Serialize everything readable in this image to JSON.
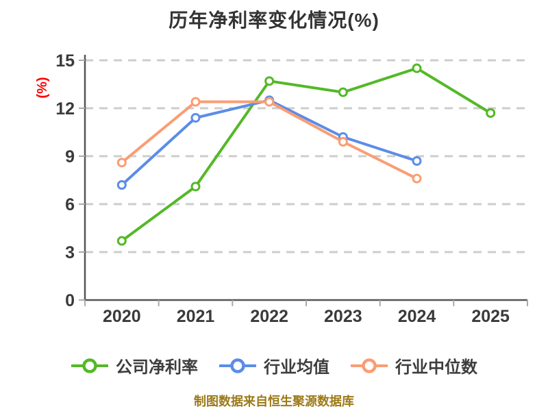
{
  "chart_data": {
    "type": "line",
    "title": "历年净利率变化情况(%)",
    "ylabel": "(%)",
    "xlabel": "",
    "categories": [
      "2020",
      "2021",
      "2022",
      "2023",
      "2024",
      "2025"
    ],
    "series": [
      {
        "name": "公司净利率",
        "color": "#54b827",
        "values": [
          3.7,
          7.1,
          13.7,
          13.0,
          14.5,
          11.7
        ]
      },
      {
        "name": "行业均值",
        "color": "#5b8ce8",
        "values": [
          7.2,
          11.4,
          12.5,
          10.2,
          8.7,
          null
        ]
      },
      {
        "name": "行业中位数",
        "color": "#fa9d73",
        "values": [
          8.6,
          12.4,
          12.4,
          9.9,
          7.6,
          null
        ]
      }
    ],
    "ylim": [
      0,
      15
    ],
    "yticks": [
      0,
      3,
      6,
      9,
      12,
      15
    ],
    "grid": true,
    "grid_style": "dashed",
    "legend_position": "bottom"
  },
  "footer": {
    "text": "制图数据来自恒生聚源数据库"
  },
  "colors": {
    "title_text": "#333333",
    "tick_text": "#3a3a3a",
    "ylabel_text": "#ff0000",
    "footer_text": "#9c7a18",
    "axis_line": "#555555",
    "tick_mark": "#aaaaaa",
    "gridline": "#cdcdcd",
    "marker_fill": "#ffffff"
  }
}
